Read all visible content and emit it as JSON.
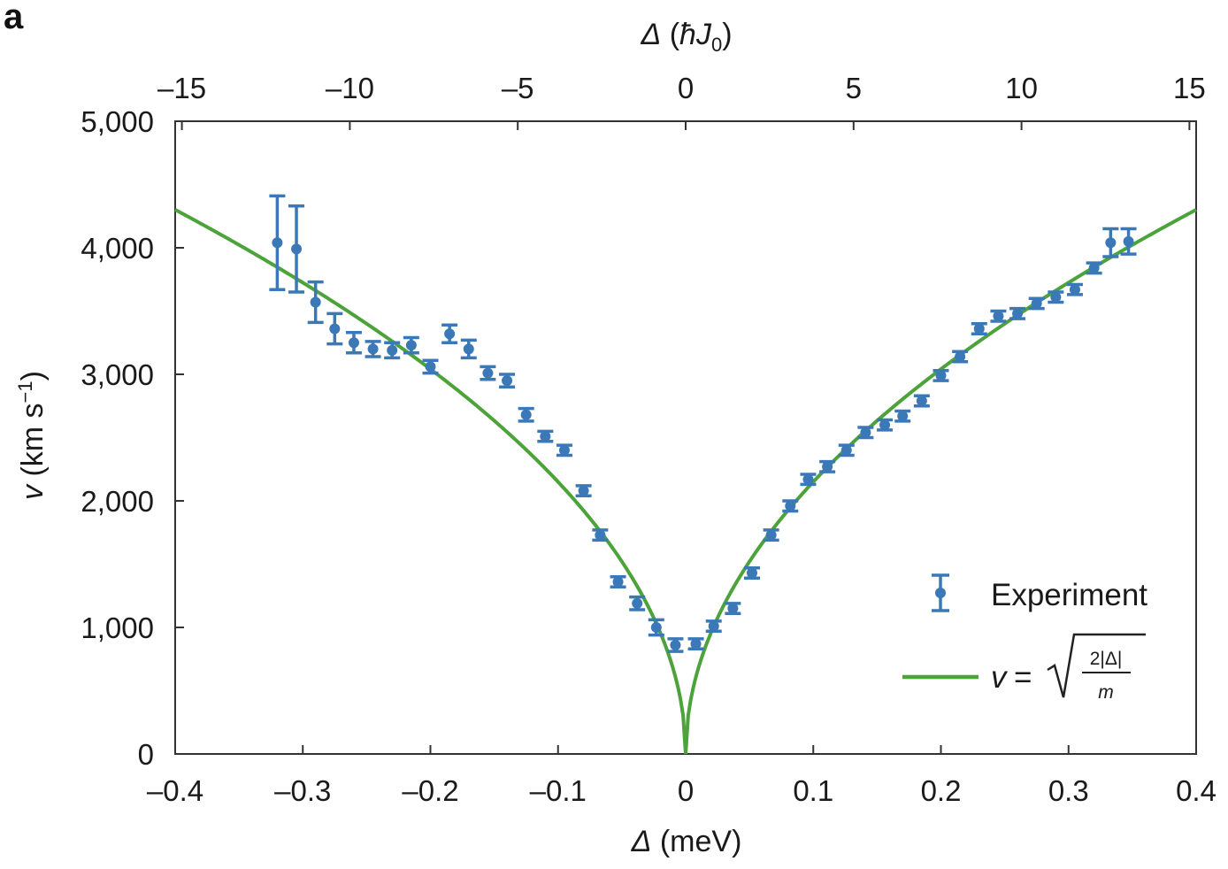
{
  "panel_label": "a",
  "chart_data": {
    "type": "scatter",
    "title": "",
    "xlabel": "Δ (meV)",
    "x2label": "Δ (ħJ0)",
    "ylabel": "v (km s−1)",
    "xlim": [
      -0.4,
      0.4
    ],
    "x2lim": [
      -15.2,
      15.2
    ],
    "ylim": [
      0,
      5000
    ],
    "x_ticks": [
      -0.4,
      -0.3,
      -0.2,
      -0.1,
      0,
      0.1,
      0.2,
      0.3,
      0.4
    ],
    "x_tick_labels": [
      "–0.4",
      "–0.3",
      "–0.2",
      "–0.1",
      "0",
      "0.1",
      "0.2",
      "0.3",
      "0.4"
    ],
    "x2_ticks": [
      -15,
      -10,
      -5,
      0,
      5,
      10,
      15
    ],
    "x2_tick_labels": [
      "–15",
      "–10",
      "–5",
      "0",
      "5",
      "10",
      "15"
    ],
    "y_ticks": [
      0,
      1000,
      2000,
      3000,
      4000,
      5000
    ],
    "y_tick_labels": [
      "0",
      "1,000",
      "2,000",
      "3,000",
      "4,000",
      "5,000"
    ],
    "grid": false,
    "legend_position": "bottom-right",
    "colors": {
      "experiment": "#3a78b8",
      "fit": "#4ba33a",
      "axis": "#333333"
    },
    "series": [
      {
        "name": "Experiment",
        "kind": "errorbar",
        "x": [
          -0.32,
          -0.305,
          -0.29,
          -0.275,
          -0.26,
          -0.245,
          -0.23,
          -0.215,
          -0.2,
          -0.185,
          -0.17,
          -0.155,
          -0.14,
          -0.125,
          -0.11,
          -0.095,
          -0.08,
          -0.067,
          -0.053,
          -0.038,
          -0.023,
          -0.008,
          0.008,
          0.022,
          0.037,
          0.052,
          0.067,
          0.082,
          0.096,
          0.111,
          0.126,
          0.141,
          0.156,
          0.17,
          0.185,
          0.2,
          0.215,
          0.23,
          0.245,
          0.26,
          0.275,
          0.29,
          0.305,
          0.32,
          0.333,
          0.347
        ],
        "y": [
          4040,
          3990,
          3570,
          3360,
          3250,
          3200,
          3190,
          3230,
          3060,
          3320,
          3200,
          3010,
          2950,
          2680,
          2510,
          2400,
          2080,
          1730,
          1360,
          1190,
          1000,
          860,
          870,
          1010,
          1150,
          1430,
          1730,
          1960,
          2170,
          2270,
          2400,
          2540,
          2600,
          2670,
          2790,
          2990,
          3140,
          3360,
          3460,
          3480,
          3560,
          3610,
          3670,
          3840,
          4040,
          4050
        ],
        "err": [
          370,
          340,
          160,
          120,
          80,
          60,
          60,
          60,
          50,
          70,
          70,
          50,
          50,
          50,
          40,
          40,
          40,
          40,
          40,
          50,
          60,
          50,
          40,
          40,
          40,
          40,
          40,
          40,
          40,
          40,
          40,
          40,
          40,
          40,
          40,
          40,
          40,
          40,
          40,
          40,
          40,
          40,
          40,
          40,
          110,
          100
        ]
      },
      {
        "name": "v = √(2|Δ|/m)",
        "kind": "curve",
        "formula": "v = 6800 * sqrt(|Δ|)"
      }
    ],
    "legend": {
      "experiment_label": "Experiment",
      "fit_label_lhs": "v",
      "fit_label_eq": "=",
      "fit_numerator": "2|Δ|",
      "fit_denominator": "m"
    }
  }
}
